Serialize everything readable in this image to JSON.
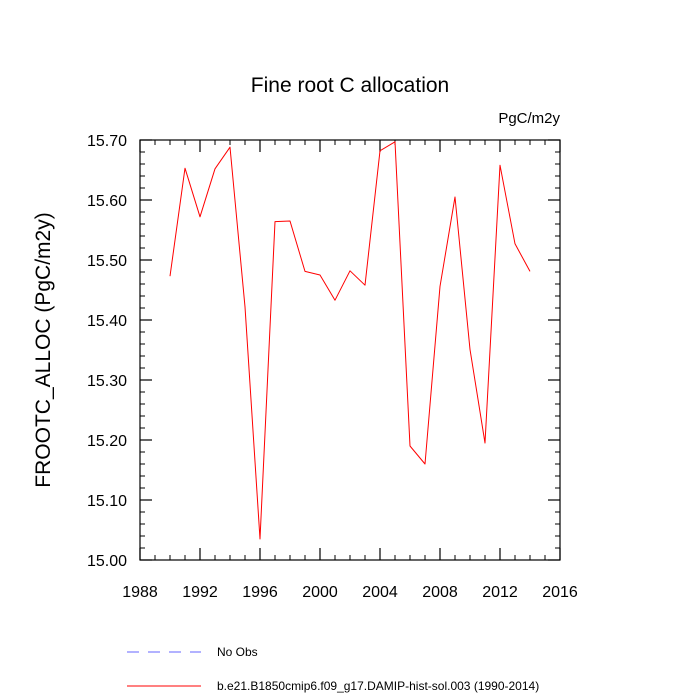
{
  "chart_data": {
    "type": "line",
    "title": "Fine root C allocation",
    "units": "PgC/m2y",
    "xlabel": "",
    "ylabel": "FROOTC_ALLOC  (PgC/m2y)",
    "xlim": [
      1988,
      2016
    ],
    "ylim": [
      15.0,
      15.7
    ],
    "x_ticks": [
      "1988",
      "1992",
      "1996",
      "2000",
      "2004",
      "2008",
      "2012",
      "2016"
    ],
    "y_ticks": [
      "15.00",
      "15.10",
      "15.20",
      "15.30",
      "15.40",
      "15.50",
      "15.60",
      "15.70"
    ],
    "grid": false,
    "legend_position": "bottom-left",
    "series": [
      {
        "name": "No Obs",
        "style": "dashed",
        "color": "#6666ff",
        "x": [],
        "values": []
      },
      {
        "name": "b.e21.B1850cmip6.f09_g17.DAMIP-hist-sol.003 (1990-2014)",
        "style": "solid",
        "color": "#ff0000",
        "x": [
          1990,
          1991,
          1992,
          1993,
          1994,
          1995,
          1996,
          1997,
          1998,
          1999,
          2000,
          2001,
          2002,
          2003,
          2004,
          2005,
          2006,
          2007,
          2008,
          2009,
          2010,
          2011,
          2012,
          2013,
          2014
        ],
        "values": [
          15.473,
          15.653,
          15.572,
          15.652,
          15.688,
          15.422,
          15.035,
          15.564,
          15.565,
          15.481,
          15.475,
          15.433,
          15.482,
          15.458,
          15.682,
          15.697,
          15.19,
          15.16,
          15.456,
          15.605,
          15.351,
          15.195,
          15.658,
          15.527,
          15.481
        ]
      }
    ]
  }
}
